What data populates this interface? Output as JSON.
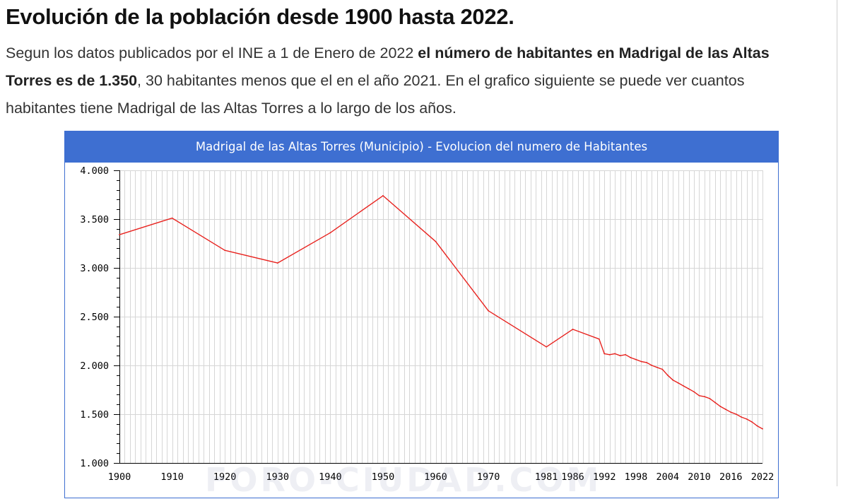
{
  "page": {
    "title": "Evolución de la población desde 1900 hasta 2022.",
    "intro_plain_1": "Segun los datos publicados por el INE a 1 de Enero de 2022 ",
    "intro_bold": "el número de habitantes en Madrigal de las Altas Torres es de 1.350",
    "intro_plain_2": ", 30 habitantes menos que el en el año 2021. En el grafico siguiente se puede ver cuantos habitantes tiene Madrigal de las Altas Torres a lo largo de los años.",
    "watermark": "FORO-CIUDAD.COM"
  },
  "chart_data": {
    "type": "line",
    "title": "Madrigal de las Altas Torres (Municipio) - Evolucion del numero de Habitantes",
    "xlabel": "",
    "ylabel": "",
    "ylim": [
      1000,
      4000
    ],
    "yticks": [
      1000,
      1500,
      2000,
      2500,
      3000,
      3500,
      4000
    ],
    "ytick_labels": [
      "1.000",
      "1.500",
      "2.000",
      "2.500",
      "3.000",
      "3.500",
      "4.000"
    ],
    "xticks": [
      1900,
      1910,
      1920,
      1930,
      1940,
      1950,
      1960,
      1970,
      1981,
      1986,
      1992,
      1998,
      2004,
      2010,
      2016,
      2022
    ],
    "xtick_labels": [
      "1900",
      "1910",
      "1920",
      "1930",
      "1940",
      "1950",
      "1960",
      "1970",
      "1981",
      "1986",
      "1992",
      "1998",
      "2004",
      "2010",
      "2016",
      "2022"
    ],
    "grid": true,
    "line_color": "#e8231f",
    "series": [
      {
        "name": "",
        "x": [
          1900,
          1910,
          1920,
          1930,
          1940,
          1950,
          1960,
          1970,
          1981,
          1986,
          1991,
          1992,
          1993,
          1994,
          1995,
          1996,
          1997,
          1998,
          1999,
          2000,
          2001,
          2002,
          2003,
          2004,
          2005,
          2006,
          2007,
          2008,
          2009,
          2010,
          2011,
          2012,
          2013,
          2014,
          2015,
          2016,
          2017,
          2018,
          2019,
          2020,
          2021,
          2022
        ],
        "values": [
          3340,
          3510,
          3180,
          3050,
          3360,
          3740,
          3270,
          2560,
          2190,
          2370,
          2270,
          2120,
          2110,
          2120,
          2100,
          2110,
          2080,
          2060,
          2040,
          2030,
          2000,
          1980,
          1960,
          1900,
          1850,
          1820,
          1790,
          1760,
          1730,
          1690,
          1680,
          1660,
          1620,
          1580,
          1550,
          1520,
          1500,
          1470,
          1450,
          1420,
          1380,
          1350
        ]
      }
    ]
  }
}
